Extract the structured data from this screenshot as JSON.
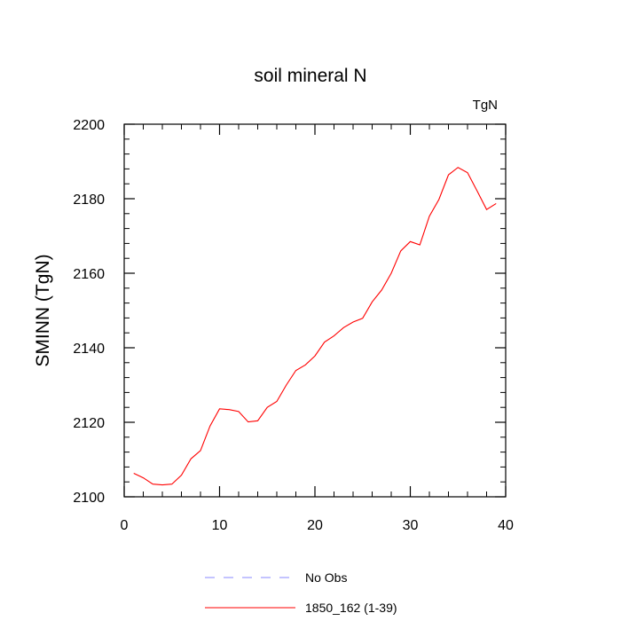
{
  "chart_data": {
    "type": "line",
    "title": "soil mineral N",
    "units_label": "TgN",
    "ylabel": "SMINN  (TgN)",
    "xlabel": "",
    "xlim": [
      0,
      40
    ],
    "ylim": [
      2100,
      2200
    ],
    "x_ticks": [
      0,
      10,
      20,
      30,
      40
    ],
    "x_tick_labels": [
      "0",
      "10",
      "20",
      "30",
      "40"
    ],
    "y_ticks": [
      2100,
      2120,
      2140,
      2160,
      2180,
      2200
    ],
    "y_tick_labels": [
      "2100",
      "2120",
      "2140",
      "2160",
      "2180",
      "2200"
    ],
    "grid": false,
    "legend_position": "bottom",
    "x": [
      1,
      2,
      3,
      4,
      5,
      6,
      7,
      8,
      9,
      10,
      11,
      12,
      13,
      14,
      15,
      16,
      17,
      18,
      19,
      20,
      21,
      22,
      23,
      24,
      25,
      26,
      27,
      28,
      29,
      30,
      31,
      32,
      33,
      34,
      35,
      36,
      37,
      38,
      39
    ],
    "series": [
      {
        "name": "1850_162 (1-39)",
        "color": "#ff0000",
        "style": "solid",
        "values": [
          2106.3,
          2105.1,
          2103.4,
          2103.2,
          2103.4,
          2105.8,
          2110.2,
          2112.4,
          2119.0,
          2123.6,
          2123.4,
          2122.9,
          2120.1,
          2120.4,
          2124.0,
          2125.6,
          2130.0,
          2133.9,
          2135.4,
          2137.8,
          2141.5,
          2143.2,
          2145.4,
          2146.9,
          2147.9,
          2152.3,
          2155.5,
          2160.0,
          2166.0,
          2168.5,
          2167.6,
          2175.3,
          2179.8,
          2186.4,
          2188.4,
          2187.0,
          2182.1,
          2177.1,
          2178.7
        ]
      }
    ],
    "legend": [
      {
        "label": "No Obs",
        "color": "#8888ff",
        "style": "dashed"
      },
      {
        "label": "1850_162 (1-39)",
        "color": "#ff0000",
        "style": "solid"
      }
    ]
  }
}
